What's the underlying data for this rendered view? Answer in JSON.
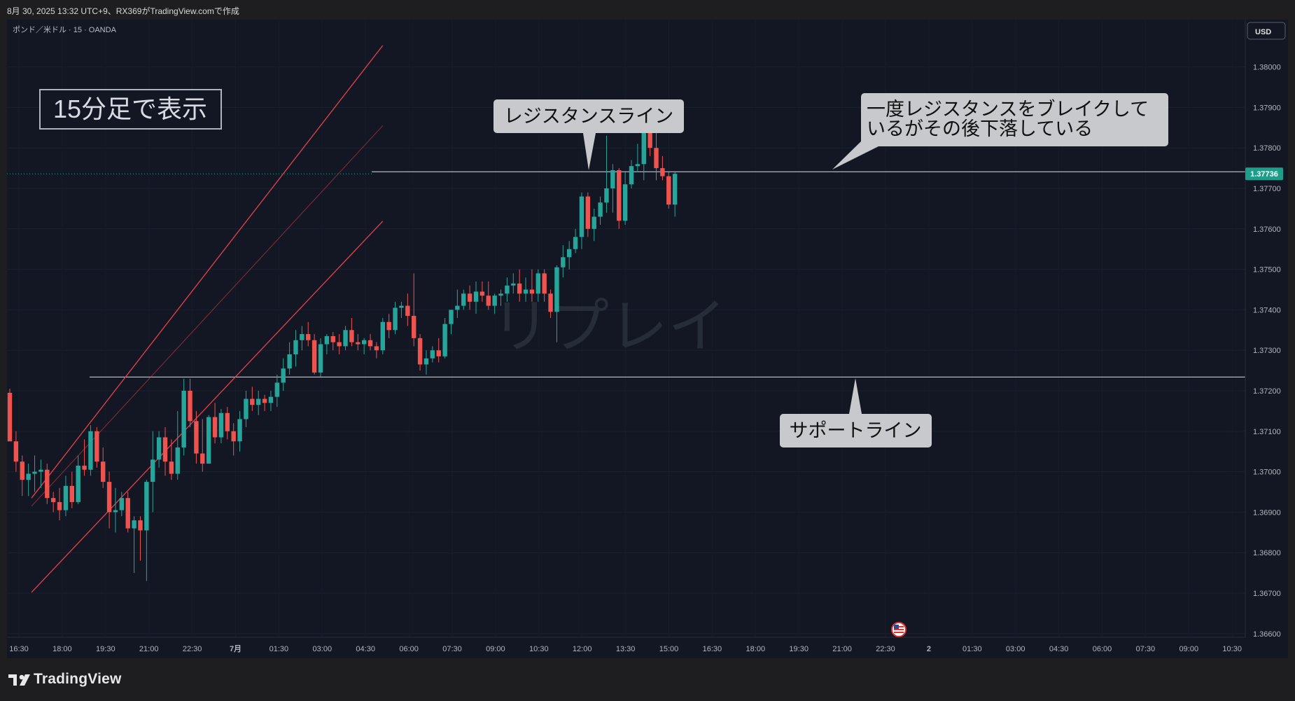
{
  "header": {
    "caption": "8月 30, 2025 13:32 UTC+9、RX369がTradingView.comで作成"
  },
  "chart": {
    "symbol_label": "ポンド／米ドル · 15 · OANDA",
    "currency_button": "USD",
    "current_price": "1.37736",
    "watermark": "リプレイ",
    "timeframe_note": "15分足で表示",
    "resistance_callout": "レジスタンスライン",
    "support_callout": "サポートライン",
    "break_callout_line1": "一度レジスタンスをブレイクして",
    "break_callout_line2": "いるがその後下落している"
  },
  "footer": {
    "brand": "TradingView"
  },
  "colors": {
    "background": "#121723",
    "up": "#26a69a",
    "down": "#ef5350",
    "channel": "#e8404e",
    "price_tag": "#1e9e8a"
  },
  "chart_data": {
    "type": "candlestick",
    "y_axis": {
      "ticks": [
        "1.38000",
        "1.37900",
        "1.37800",
        "1.37700",
        "1.37600",
        "1.37500",
        "1.37400",
        "1.37300",
        "1.37200",
        "1.37100",
        "1.37000",
        "1.36900",
        "1.36800",
        "1.36700",
        "1.36600"
      ],
      "range": [
        1.3658,
        1.3808
      ]
    },
    "x_axis": {
      "ticks": [
        "16:30",
        "18:00",
        "19:30",
        "21:00",
        "22:30",
        "7月",
        "01:30",
        "03:00",
        "04:30",
        "06:00",
        "07:30",
        "09:00",
        "10:30",
        "12:00",
        "13:30",
        "15:00",
        "16:30",
        "18:00",
        "19:30",
        "21:00",
        "22:30",
        "2",
        "01:30",
        "03:00",
        "04:30",
        "06:00",
        "07:30",
        "09:00",
        "10:30"
      ]
    },
    "horizontal_lines": [
      {
        "label": "resistance",
        "value": 1.37741
      },
      {
        "label": "support",
        "value": 1.37234
      }
    ],
    "channel": {
      "upper": [
        [
          3.5,
          1.36935
        ],
        [
          60,
          1.38053
        ]
      ],
      "middle": [
        [
          3.5,
          1.36915
        ],
        [
          60,
          1.37855
        ]
      ],
      "lower": [
        [
          3.5,
          1.36702
        ],
        [
          60,
          1.37619
        ]
      ]
    },
    "candles": [
      {
        "o": 1.37195,
        "h": 1.37205,
        "l": 1.37085,
        "c": 1.37075
      },
      {
        "o": 1.37075,
        "h": 1.371,
        "l": 1.37,
        "c": 1.37025
      },
      {
        "o": 1.37025,
        "h": 1.3704,
        "l": 1.3694,
        "c": 1.3698
      },
      {
        "o": 1.3698,
        "h": 1.3702,
        "l": 1.3694,
        "c": 1.36995
      },
      {
        "o": 1.36995,
        "h": 1.3704,
        "l": 1.3695,
        "c": 1.37
      },
      {
        "o": 1.37,
        "h": 1.3703,
        "l": 1.3696,
        "c": 1.37005
      },
      {
        "o": 1.37005,
        "h": 1.3702,
        "l": 1.3692,
        "c": 1.36935
      },
      {
        "o": 1.36935,
        "h": 1.3695,
        "l": 1.369,
        "c": 1.36925
      },
      {
        "o": 1.36925,
        "h": 1.3696,
        "l": 1.3688,
        "c": 1.36905
      },
      {
        "o": 1.36905,
        "h": 1.3699,
        "l": 1.3689,
        "c": 1.36965
      },
      {
        "o": 1.36965,
        "h": 1.37,
        "l": 1.3691,
        "c": 1.36925
      },
      {
        "o": 1.36925,
        "h": 1.3704,
        "l": 1.3692,
        "c": 1.37015
      },
      {
        "o": 1.37015,
        "h": 1.3708,
        "l": 1.3699,
        "c": 1.37005
      },
      {
        "o": 1.37005,
        "h": 1.37115,
        "l": 1.3699,
        "c": 1.371
      },
      {
        "o": 1.371,
        "h": 1.3711,
        "l": 1.3701,
        "c": 1.37025
      },
      {
        "o": 1.37025,
        "h": 1.3706,
        "l": 1.3696,
        "c": 1.36975
      },
      {
        "o": 1.36975,
        "h": 1.37,
        "l": 1.3686,
        "c": 1.369
      },
      {
        "o": 1.369,
        "h": 1.3696,
        "l": 1.3685,
        "c": 1.36905
      },
      {
        "o": 1.36905,
        "h": 1.3695,
        "l": 1.3689,
        "c": 1.36935
      },
      {
        "o": 1.36935,
        "h": 1.3695,
        "l": 1.3685,
        "c": 1.3686
      },
      {
        "o": 1.3686,
        "h": 1.3689,
        "l": 1.3675,
        "c": 1.3688
      },
      {
        "o": 1.3688,
        "h": 1.3689,
        "l": 1.3678,
        "c": 1.36855
      },
      {
        "o": 1.36855,
        "h": 1.3698,
        "l": 1.3673,
        "c": 1.36975
      },
      {
        "o": 1.36975,
        "h": 1.371,
        "l": 1.369,
        "c": 1.3703
      },
      {
        "o": 1.3703,
        "h": 1.371,
        "l": 1.3701,
        "c": 1.37085
      },
      {
        "o": 1.37085,
        "h": 1.3711,
        "l": 1.3699,
        "c": 1.37025
      },
      {
        "o": 1.37025,
        "h": 1.3708,
        "l": 1.3698,
        "c": 1.36995
      },
      {
        "o": 1.36995,
        "h": 1.3715,
        "l": 1.3698,
        "c": 1.3706
      },
      {
        "o": 1.3706,
        "h": 1.3723,
        "l": 1.3704,
        "c": 1.372
      },
      {
        "o": 1.372,
        "h": 1.3723,
        "l": 1.3711,
        "c": 1.37125
      },
      {
        "o": 1.37125,
        "h": 1.3715,
        "l": 1.3702,
        "c": 1.37045
      },
      {
        "o": 1.37045,
        "h": 1.3713,
        "l": 1.37,
        "c": 1.3702
      },
      {
        "o": 1.3702,
        "h": 1.3714,
        "l": 1.3702,
        "c": 1.37135
      },
      {
        "o": 1.37135,
        "h": 1.3717,
        "l": 1.3707,
        "c": 1.37085
      },
      {
        "o": 1.37085,
        "h": 1.37155,
        "l": 1.3707,
        "c": 1.37145
      },
      {
        "o": 1.37145,
        "h": 1.3716,
        "l": 1.3708,
        "c": 1.371
      },
      {
        "o": 1.371,
        "h": 1.3712,
        "l": 1.3704,
        "c": 1.37075
      },
      {
        "o": 1.37075,
        "h": 1.3715,
        "l": 1.3705,
        "c": 1.3713
      },
      {
        "o": 1.3713,
        "h": 1.372,
        "l": 1.3711,
        "c": 1.3718
      },
      {
        "o": 1.3718,
        "h": 1.3721,
        "l": 1.3715,
        "c": 1.37165
      },
      {
        "o": 1.37165,
        "h": 1.372,
        "l": 1.3714,
        "c": 1.3718
      },
      {
        "o": 1.3718,
        "h": 1.3719,
        "l": 1.3715,
        "c": 1.3717
      },
      {
        "o": 1.3717,
        "h": 1.372,
        "l": 1.3715,
        "c": 1.37185
      },
      {
        "o": 1.37185,
        "h": 1.3724,
        "l": 1.3716,
        "c": 1.3722
      },
      {
        "o": 1.3722,
        "h": 1.3728,
        "l": 1.372,
        "c": 1.37255
      },
      {
        "o": 1.37255,
        "h": 1.3732,
        "l": 1.3724,
        "c": 1.3729
      },
      {
        "o": 1.3729,
        "h": 1.3735,
        "l": 1.3726,
        "c": 1.37325
      },
      {
        "o": 1.37325,
        "h": 1.3736,
        "l": 1.373,
        "c": 1.3734
      },
      {
        "o": 1.3734,
        "h": 1.3737,
        "l": 1.3731,
        "c": 1.37325
      },
      {
        "o": 1.37325,
        "h": 1.3734,
        "l": 1.3724,
        "c": 1.37245
      },
      {
        "o": 1.37245,
        "h": 1.3733,
        "l": 1.37235,
        "c": 1.37315
      },
      {
        "o": 1.37315,
        "h": 1.3734,
        "l": 1.3729,
        "c": 1.37335
      },
      {
        "o": 1.37335,
        "h": 1.37345,
        "l": 1.373,
        "c": 1.3732
      },
      {
        "o": 1.3732,
        "h": 1.3734,
        "l": 1.3729,
        "c": 1.3731
      },
      {
        "o": 1.3731,
        "h": 1.3736,
        "l": 1.373,
        "c": 1.3735
      },
      {
        "o": 1.3735,
        "h": 1.3738,
        "l": 1.3731,
        "c": 1.3732
      },
      {
        "o": 1.3732,
        "h": 1.3734,
        "l": 1.373,
        "c": 1.37315
      },
      {
        "o": 1.37315,
        "h": 1.3733,
        "l": 1.3729,
        "c": 1.37325
      },
      {
        "o": 1.37325,
        "h": 1.3734,
        "l": 1.373,
        "c": 1.3731
      },
      {
        "o": 1.3731,
        "h": 1.3732,
        "l": 1.3728,
        "c": 1.373
      },
      {
        "o": 1.373,
        "h": 1.3738,
        "l": 1.3729,
        "c": 1.3737
      },
      {
        "o": 1.3737,
        "h": 1.3739,
        "l": 1.3733,
        "c": 1.3735
      },
      {
        "o": 1.3735,
        "h": 1.3742,
        "l": 1.3734,
        "c": 1.37405
      },
      {
        "o": 1.37405,
        "h": 1.3742,
        "l": 1.3738,
        "c": 1.3741
      },
      {
        "o": 1.3741,
        "h": 1.3744,
        "l": 1.3736,
        "c": 1.37385
      },
      {
        "o": 1.37385,
        "h": 1.3749,
        "l": 1.3731,
        "c": 1.3733
      },
      {
        "o": 1.3733,
        "h": 1.3734,
        "l": 1.3725,
        "c": 1.37265
      },
      {
        "o": 1.37265,
        "h": 1.373,
        "l": 1.3724,
        "c": 1.3728
      },
      {
        "o": 1.3728,
        "h": 1.3731,
        "l": 1.3727,
        "c": 1.373
      },
      {
        "o": 1.373,
        "h": 1.3733,
        "l": 1.3727,
        "c": 1.37285
      },
      {
        "o": 1.37285,
        "h": 1.3738,
        "l": 1.3728,
        "c": 1.37365
      },
      {
        "o": 1.37365,
        "h": 1.374,
        "l": 1.3734,
        "c": 1.374
      },
      {
        "o": 1.374,
        "h": 1.3745,
        "l": 1.3738,
        "c": 1.3741
      },
      {
        "o": 1.3741,
        "h": 1.3745,
        "l": 1.374,
        "c": 1.3744
      },
      {
        "o": 1.3744,
        "h": 1.3746,
        "l": 1.374,
        "c": 1.3742
      },
      {
        "o": 1.3742,
        "h": 1.3747,
        "l": 1.3739,
        "c": 1.37445
      },
      {
        "o": 1.37445,
        "h": 1.3747,
        "l": 1.3742,
        "c": 1.37435
      },
      {
        "o": 1.37435,
        "h": 1.3747,
        "l": 1.374,
        "c": 1.3741
      },
      {
        "o": 1.3741,
        "h": 1.3744,
        "l": 1.3739,
        "c": 1.37435
      },
      {
        "o": 1.37435,
        "h": 1.3745,
        "l": 1.3741,
        "c": 1.3744
      },
      {
        "o": 1.3744,
        "h": 1.3748,
        "l": 1.3742,
        "c": 1.3746
      },
      {
        "o": 1.3746,
        "h": 1.3749,
        "l": 1.3744,
        "c": 1.37465
      },
      {
        "o": 1.37465,
        "h": 1.375,
        "l": 1.3742,
        "c": 1.3744
      },
      {
        "o": 1.3744,
        "h": 1.3748,
        "l": 1.3742,
        "c": 1.3745
      },
      {
        "o": 1.3745,
        "h": 1.375,
        "l": 1.3742,
        "c": 1.3744
      },
      {
        "o": 1.3744,
        "h": 1.375,
        "l": 1.3742,
        "c": 1.3749
      },
      {
        "o": 1.3749,
        "h": 1.375,
        "l": 1.3742,
        "c": 1.3744
      },
      {
        "o": 1.3744,
        "h": 1.3745,
        "l": 1.3738,
        "c": 1.37395
      },
      {
        "o": 1.37395,
        "h": 1.3751,
        "l": 1.3732,
        "c": 1.37505
      },
      {
        "o": 1.37505,
        "h": 1.3756,
        "l": 1.3748,
        "c": 1.3753
      },
      {
        "o": 1.3753,
        "h": 1.3757,
        "l": 1.375,
        "c": 1.3755
      },
      {
        "o": 1.3755,
        "h": 1.376,
        "l": 1.3754,
        "c": 1.3758
      },
      {
        "o": 1.3758,
        "h": 1.3769,
        "l": 1.3755,
        "c": 1.3768
      },
      {
        "o": 1.3768,
        "h": 1.3769,
        "l": 1.3758,
        "c": 1.376
      },
      {
        "o": 1.376,
        "h": 1.3765,
        "l": 1.3757,
        "c": 1.3763
      },
      {
        "o": 1.3763,
        "h": 1.3768,
        "l": 1.3761,
        "c": 1.37665
      },
      {
        "o": 1.37665,
        "h": 1.3783,
        "l": 1.3764,
        "c": 1.377
      },
      {
        "o": 1.377,
        "h": 1.3776,
        "l": 1.3764,
        "c": 1.37745
      },
      {
        "o": 1.37745,
        "h": 1.3775,
        "l": 1.376,
        "c": 1.3762
      },
      {
        "o": 1.3762,
        "h": 1.3774,
        "l": 1.3761,
        "c": 1.3771
      },
      {
        "o": 1.3771,
        "h": 1.3777,
        "l": 1.377,
        "c": 1.37755
      },
      {
        "o": 1.37755,
        "h": 1.3781,
        "l": 1.3774,
        "c": 1.3776
      },
      {
        "o": 1.3776,
        "h": 1.3788,
        "l": 1.3772,
        "c": 1.3787
      },
      {
        "o": 1.3787,
        "h": 1.3788,
        "l": 1.3778,
        "c": 1.378
      },
      {
        "o": 1.378,
        "h": 1.3785,
        "l": 1.3772,
        "c": 1.3775
      },
      {
        "o": 1.3775,
        "h": 1.3778,
        "l": 1.3772,
        "c": 1.3773
      },
      {
        "o": 1.3773,
        "h": 1.3774,
        "l": 1.3765,
        "c": 1.3766
      },
      {
        "o": 1.3766,
        "h": 1.3774,
        "l": 1.3763,
        "c": 1.37736
      }
    ]
  }
}
